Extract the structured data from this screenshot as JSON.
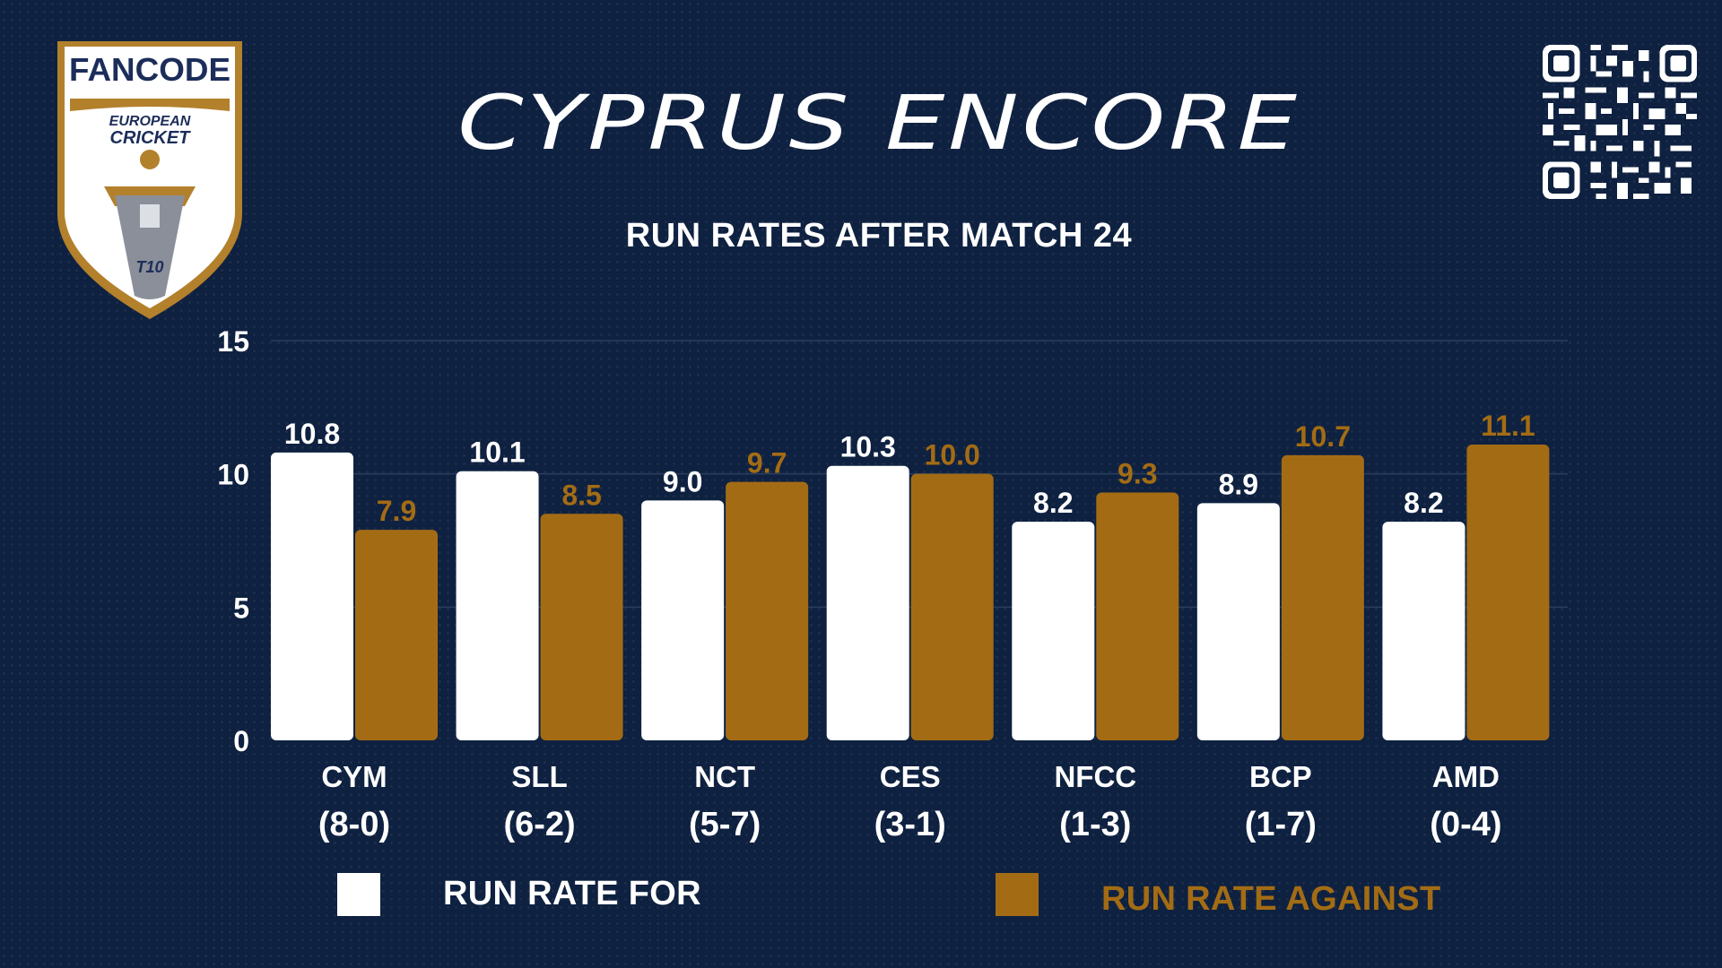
{
  "header": {
    "title": "CYPRUS ENCORE",
    "subtitle": "RUN RATES AFTER MATCH 24"
  },
  "logo": {
    "brand": "FANCODE",
    "line1": "EUROPEAN",
    "line2": "CRICKET",
    "badge": "T10"
  },
  "colors": {
    "background": "#0f2140",
    "for": "#ffffff",
    "against": "#a36c14",
    "gridline": "#2c3e5e"
  },
  "legend": {
    "for_label": "RUN RATE FOR",
    "against_label": "RUN RATE AGAINST"
  },
  "chart_data": {
    "type": "bar",
    "categories": [
      "CYM",
      "SLL",
      "NCT",
      "CES",
      "NFCC",
      "BCP",
      "AMD"
    ],
    "records": [
      "(8-0)",
      "(6-2)",
      "(5-7)",
      "(3-1)",
      "(1-3)",
      "(1-7)",
      "(0-4)"
    ],
    "series": [
      {
        "name": "RUN RATE FOR",
        "values": [
          10.8,
          10.1,
          9.0,
          10.3,
          8.2,
          8.9,
          8.2
        ],
        "labels": [
          "10.8",
          "10.1",
          "9.0",
          "10.3",
          "8.2",
          "8.9",
          "8.2"
        ]
      },
      {
        "name": "RUN RATE AGAINST",
        "values": [
          7.9,
          8.5,
          9.7,
          10.0,
          9.3,
          10.7,
          11.1
        ],
        "labels": [
          "7.9",
          "8.5",
          "9.7",
          "10.0",
          "9.3",
          "10.7",
          "11.1"
        ]
      }
    ],
    "yticks": [
      "0",
      "5",
      "10",
      "15"
    ],
    "ylim": [
      0,
      15
    ],
    "grid": true,
    "legend_position": "bottom"
  }
}
